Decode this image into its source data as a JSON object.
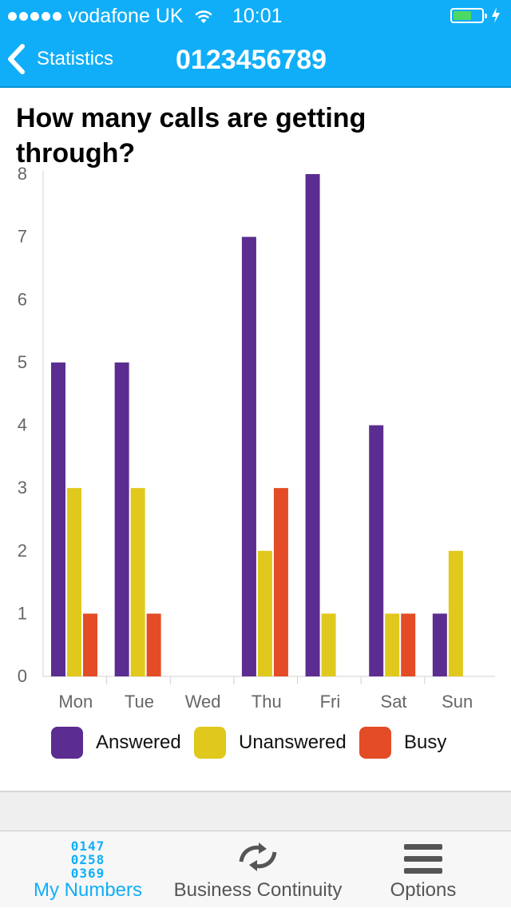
{
  "status_bar": {
    "carrier": "vodafone UK",
    "time": "10:01"
  },
  "nav": {
    "back_label": "Statistics",
    "title": "0123456789"
  },
  "chart_title": "How many calls are getting through?",
  "chart_data": {
    "type": "bar",
    "title": "How many calls are getting through?",
    "categories": [
      "Mon",
      "Tue",
      "Wed",
      "Thu",
      "Fri",
      "Sat",
      "Sun"
    ],
    "series": [
      {
        "name": "Answered",
        "color": "#5b2d90",
        "values": [
          5,
          5,
          0,
          7,
          8,
          4,
          1
        ]
      },
      {
        "name": "Unanswered",
        "color": "#e0c81c",
        "values": [
          3,
          3,
          0,
          2,
          1,
          1,
          2
        ]
      },
      {
        "name": "Busy",
        "color": "#e34c26",
        "values": [
          1,
          1,
          0,
          3,
          0,
          1,
          0
        ]
      }
    ],
    "ylim": [
      0,
      8
    ],
    "yticks": [
      "0",
      "1",
      "2",
      "3",
      "4",
      "5",
      "6",
      "7",
      "8"
    ],
    "grid": false,
    "legend": "bottom"
  },
  "legend": [
    {
      "label": "Answered",
      "color": "#5b2d90"
    },
    {
      "label": "Unanswered",
      "color": "#e0c81c"
    },
    {
      "label": "Busy",
      "color": "#e34c26"
    }
  ],
  "tabbar": {
    "tabs": [
      {
        "label": "My  Numbers",
        "icon": "number-grid-icon",
        "icon_text": [
          "0147",
          "0258",
          "0369"
        ],
        "active": true
      },
      {
        "label": "Business  Continuity",
        "icon": "continuity-arrows-icon",
        "active": false
      },
      {
        "label": "Options",
        "icon": "menu-lines-icon",
        "active": false
      }
    ]
  }
}
